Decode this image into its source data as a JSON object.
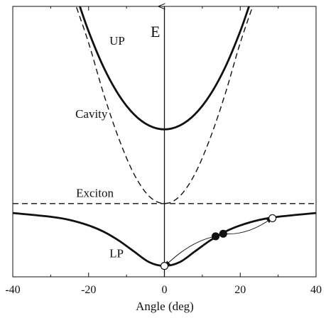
{
  "chart_data": {
    "type": "line",
    "xlabel": "Angle (deg)",
    "ylabel": "E",
    "xlim": [
      -40,
      40
    ],
    "ylim": [
      0,
      10
    ],
    "xticks": [
      -40,
      -20,
      0,
      20,
      40
    ],
    "grid": false,
    "series": [
      {
        "name": "UP",
        "style": "solid",
        "x": [
          -23,
          -20,
          -16,
          -12,
          -8,
          -4,
          0,
          4,
          8,
          12,
          16,
          20,
          23
        ],
        "y": [
          10.0,
          8.86,
          7.6,
          6.64,
          5.97,
          5.58,
          5.45,
          5.58,
          5.97,
          6.64,
          7.6,
          8.86,
          10.0
        ]
      },
      {
        "name": "Cavity",
        "style": "dashed",
        "x": [
          -24,
          -20,
          -16,
          -12,
          -8,
          -4,
          0,
          4,
          8,
          12,
          16,
          20,
          24
        ],
        "y": [
          10.0,
          8.46,
          6.67,
          5.12,
          3.89,
          3.12,
          2.87,
          3.12,
          3.89,
          5.12,
          6.67,
          8.46,
          10.0
        ]
      },
      {
        "name": "Exciton",
        "style": "dashed",
        "x": [
          -40,
          40
        ],
        "y": [
          2.87,
          2.87
        ]
      },
      {
        "name": "LP",
        "style": "solid",
        "x": [
          -40,
          -30,
          -25,
          -20,
          -16,
          -12,
          -8,
          -4,
          0,
          4,
          8,
          12,
          16,
          20,
          25,
          30,
          40
        ],
        "y": [
          2.54,
          2.41,
          2.3,
          2.11,
          1.89,
          1.58,
          1.2,
          0.83,
          0.7,
          0.83,
          1.2,
          1.58,
          1.89,
          2.11,
          2.3,
          2.41,
          2.54
        ]
      }
    ],
    "markers": [
      {
        "x": 0,
        "y": 0.7,
        "fill": "open"
      },
      {
        "x": 13.5,
        "y": 1.73,
        "fill": "filled"
      },
      {
        "x": 15.5,
        "y": 1.82,
        "fill": "filled"
      },
      {
        "x": 28.5,
        "y": 2.36,
        "fill": "open"
      }
    ],
    "arrows": [
      {
        "from": {
          "x": 13.5,
          "y": 1.73
        },
        "to": {
          "x": 0.2,
          "y": 0.7
        }
      },
      {
        "from": {
          "x": 15.5,
          "y": 1.82
        },
        "to": {
          "x": 28.3,
          "y": 2.36
        }
      }
    ],
    "annotations": [
      {
        "text": "UP",
        "x": -14.5,
        "y": 8.4
      },
      {
        "text": "Cavity",
        "x": -23.5,
        "y": 5.85
      },
      {
        "text": "Exciton",
        "x": -23.3,
        "y": 3.1
      },
      {
        "text": "LP",
        "x": -14.5,
        "y": 1.0
      }
    ],
    "colors": {
      "line": "#111111",
      "background": "#ffffff"
    }
  }
}
